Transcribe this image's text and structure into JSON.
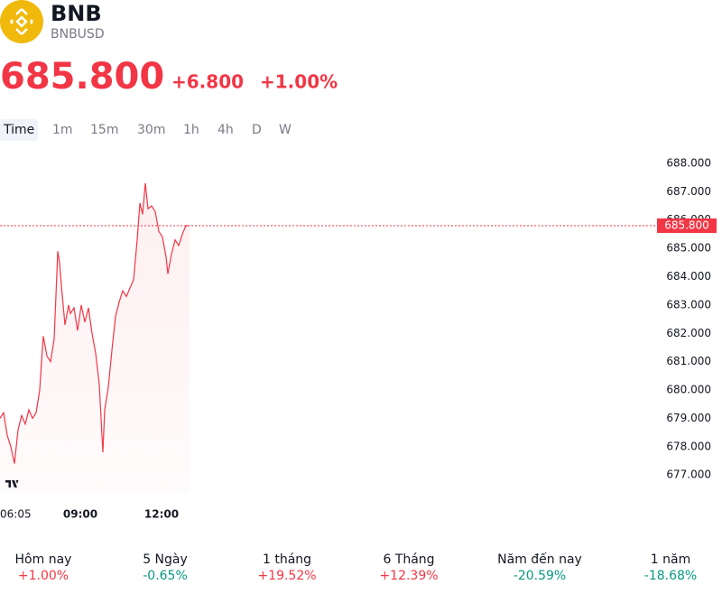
{
  "header": {
    "name": "BNB",
    "symbol": "BNBUSD",
    "price": "685.800",
    "change": "+6.800",
    "change_percent": "+1.00%",
    "color": "#f23645"
  },
  "tabs": [
    "Time",
    "1m",
    "15m",
    "30m",
    "1h",
    "4h",
    "D",
    "W"
  ],
  "active_tab": 0,
  "chart_data": {
    "type": "line",
    "color": "#f23645",
    "x": [
      362,
      370,
      378,
      386,
      394,
      402,
      410,
      418,
      426,
      434,
      442,
      450,
      454,
      458,
      466,
      474,
      482,
      490,
      494,
      498,
      506,
      514,
      518,
      526,
      534,
      542,
      550,
      558,
      566,
      574,
      582,
      586,
      590,
      594,
      602,
      610,
      618,
      626,
      634,
      642,
      650,
      658,
      666,
      672,
      678,
      684,
      690,
      698,
      706,
      714,
      722,
      730,
      734,
      742,
      750,
      758,
      766,
      774,
      782
    ],
    "values": [
      679.0,
      679.2,
      678.4,
      678.0,
      677.4,
      678.6,
      679.1,
      678.8,
      679.3,
      679.0,
      679.2,
      680.0,
      681.0,
      681.9,
      681.2,
      681.0,
      681.8,
      684.9,
      684.5,
      683.7,
      682.3,
      683.0,
      682.7,
      682.9,
      682.1,
      683.0,
      682.4,
      682.9,
      682.0,
      681.3,
      680.2,
      679.0,
      677.8,
      679.3,
      680.1,
      681.4,
      682.6,
      683.1,
      683.5,
      683.3,
      683.6,
      683.9,
      685.3,
      686.6,
      686.2,
      687.3,
      686.4,
      686.5,
      686.3,
      685.6,
      685.4,
      684.7,
      684.1,
      684.8,
      685.3,
      685.1,
      685.5,
      685.8,
      685.8
    ],
    "xlim": [
      362,
      1818
    ],
    "ylim": [
      676.4,
      688.35
    ],
    "yticks": [
      {
        "value": 677,
        "label": "677.000"
      },
      {
        "value": 678,
        "label": "678.000"
      },
      {
        "value": 679,
        "label": "679.000"
      },
      {
        "value": 680,
        "label": "680.000"
      },
      {
        "value": 681,
        "label": "681.000"
      },
      {
        "value": 682,
        "label": "682.000"
      },
      {
        "value": 683,
        "label": "683.000"
      },
      {
        "value": 684,
        "label": "684.000"
      },
      {
        "value": 685,
        "label": "685.000"
      },
      {
        "value": 686,
        "label": "686.000"
      },
      {
        "value": 687,
        "label": "687.000"
      },
      {
        "value": 688,
        "label": "688.000"
      }
    ],
    "xticks": [
      {
        "value": 365,
        "label": "06:05"
      },
      {
        "value": 540,
        "label": "09:00"
      },
      {
        "value": 720,
        "label": "12:00"
      }
    ],
    "price_line": {
      "value": 685.8,
      "label": "685.800"
    }
  },
  "performance": [
    {
      "label": "Hôm nay",
      "value": "+1.00%",
      "color": "#f23645"
    },
    {
      "label": "5 Ngày",
      "value": "-0.65%",
      "color": "#089981"
    },
    {
      "label": "1 tháng",
      "value": "+19.52%",
      "color": "#f23645"
    },
    {
      "label": "6 Tháng",
      "value": "+12.39%",
      "color": "#f23645"
    },
    {
      "label": "Năm đến nay",
      "value": "-20.59%",
      "color": "#089981"
    },
    {
      "label": "1 năm",
      "value": "-18.68%",
      "color": "#089981"
    }
  ]
}
